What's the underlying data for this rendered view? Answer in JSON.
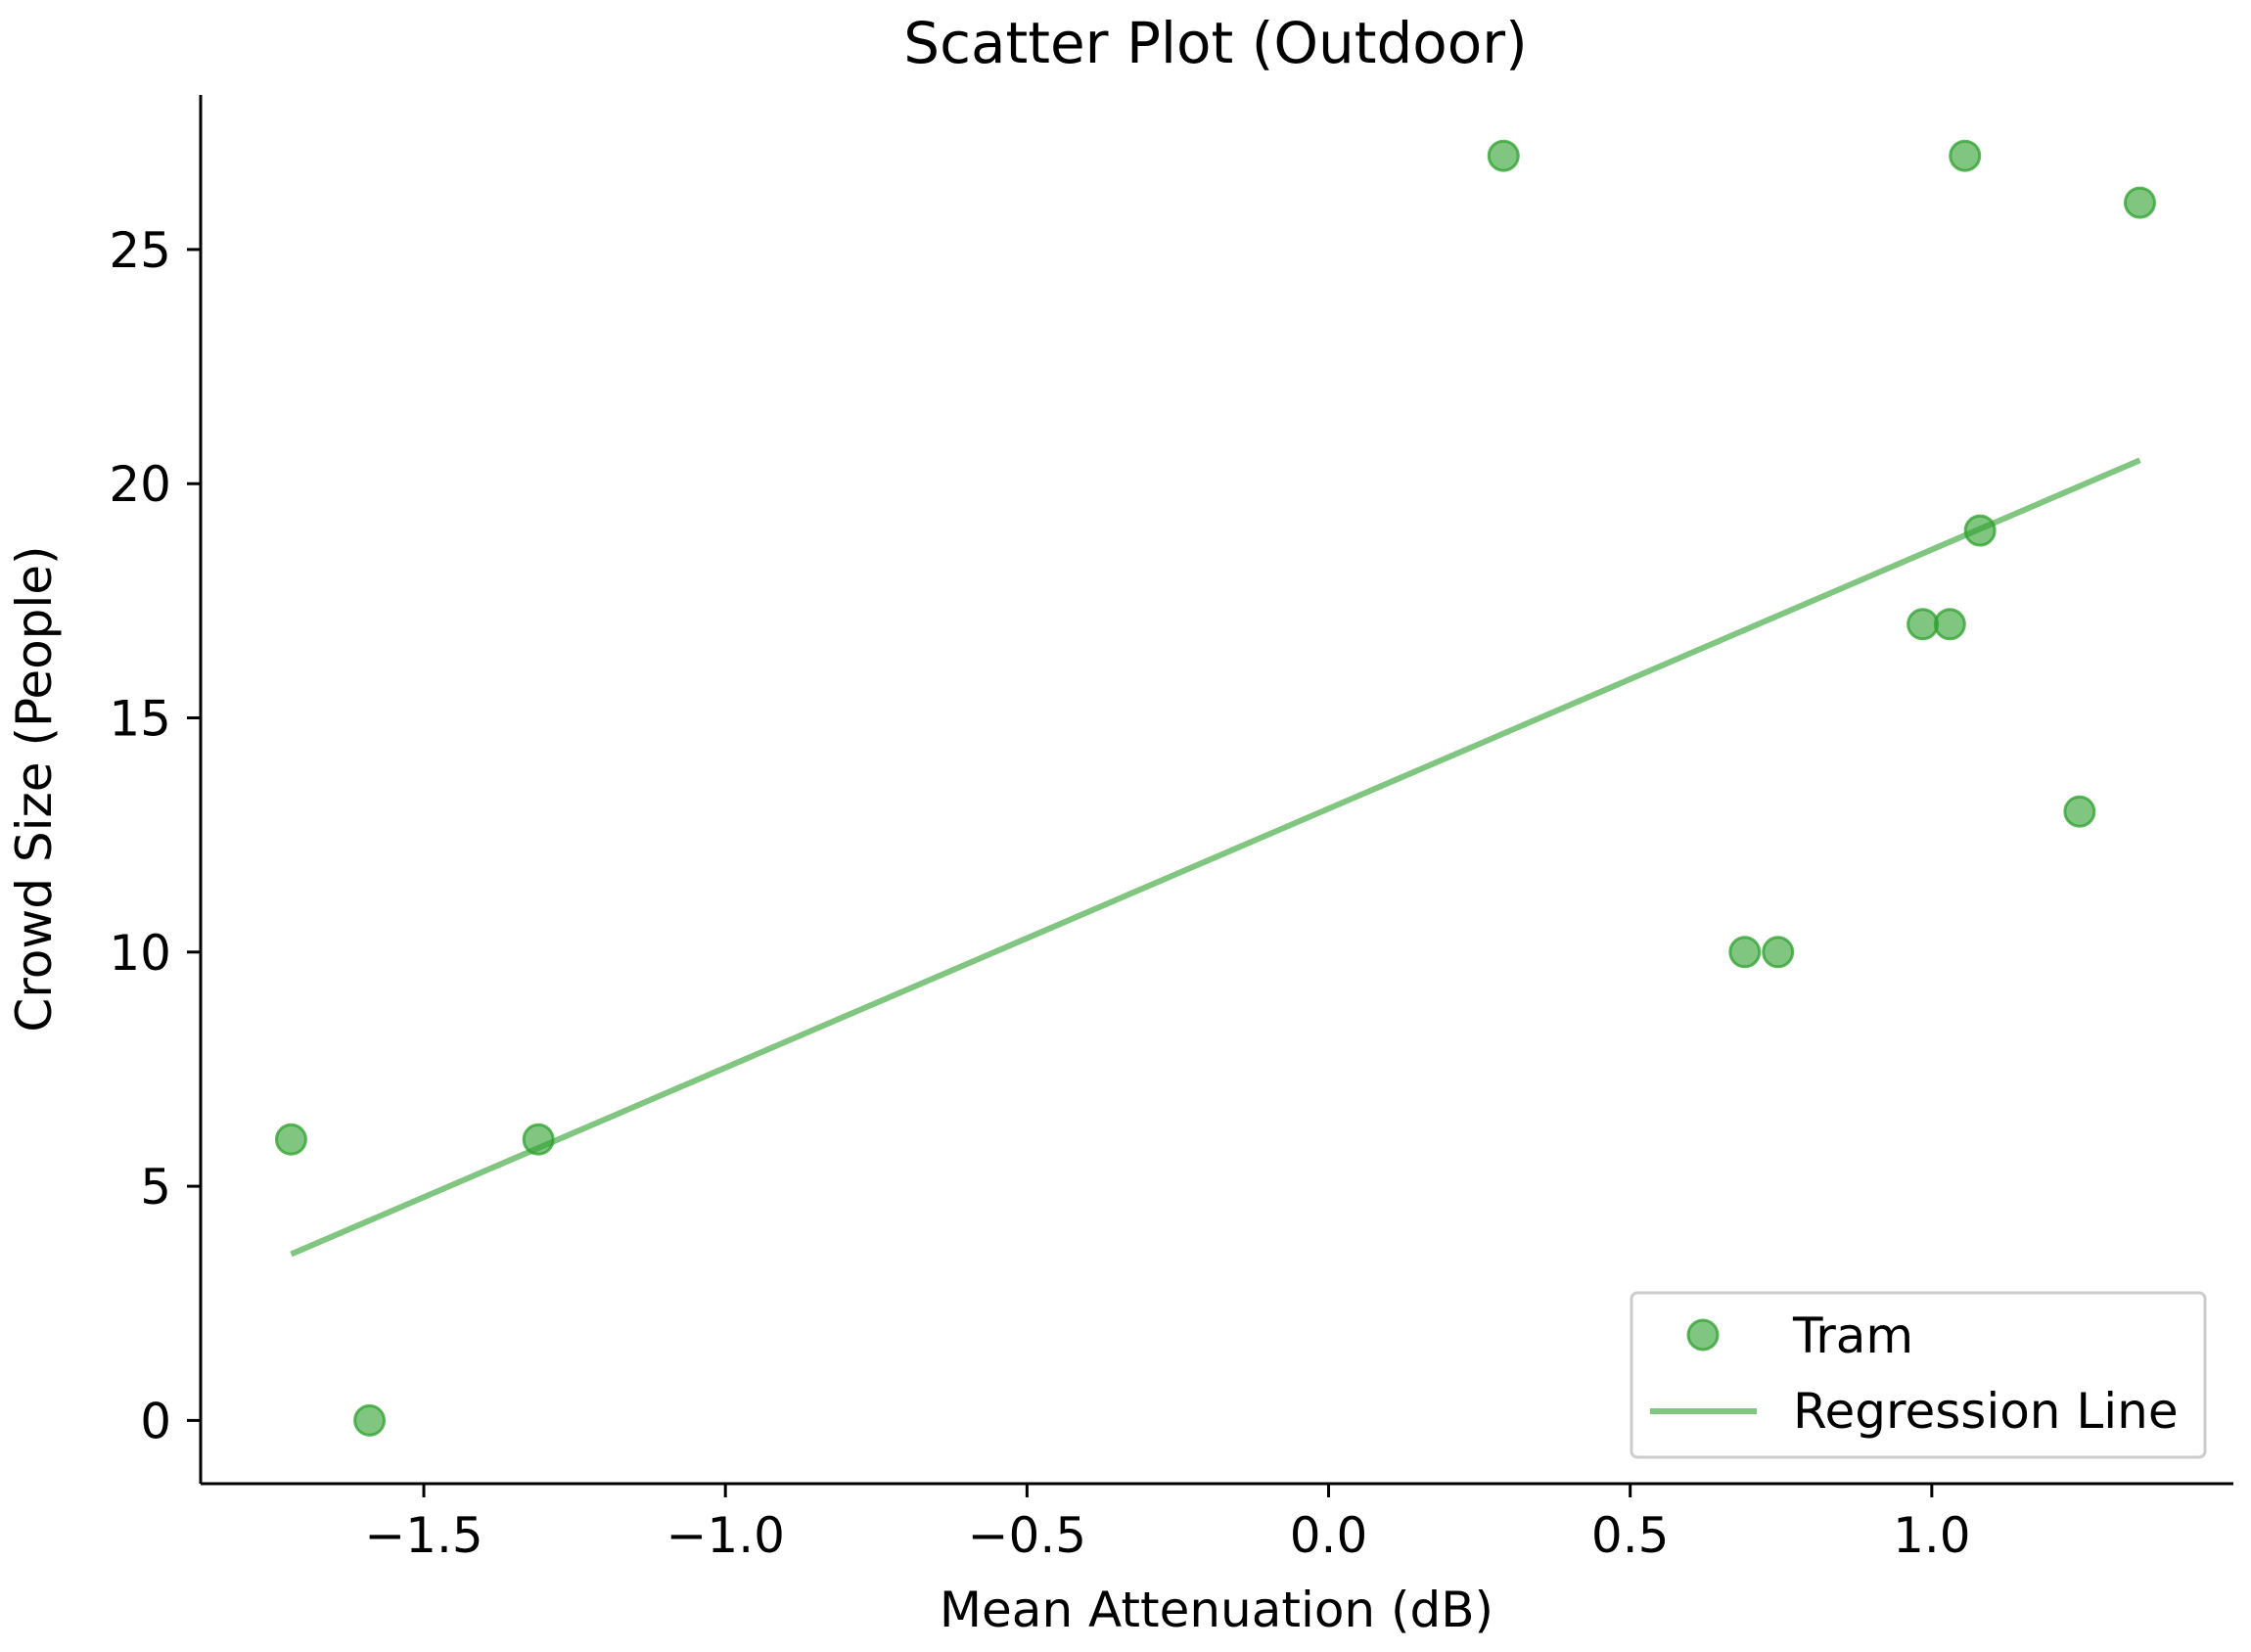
{
  "chart_data": {
    "type": "scatter",
    "title": "Scatter Plot (Outdoor)",
    "xlabel": "Mean Attenuation (dB)",
    "ylabel": "Crowd Size (People)",
    "xlim": [
      -1.87,
      1.5
    ],
    "ylim": [
      -1.35,
      28.3
    ],
    "x_ticks": [
      -1.5,
      -1.0,
      -0.5,
      0.0,
      0.5,
      1.0
    ],
    "x_tick_labels": [
      "−1.5",
      "−1.0",
      "−0.5",
      "0.0",
      "0.5",
      "1.0"
    ],
    "y_ticks": [
      0,
      5,
      10,
      15,
      20,
      25
    ],
    "y_tick_labels": [
      "0",
      "5",
      "10",
      "15",
      "20",
      "25"
    ],
    "grid": false,
    "legend_position": "bottom-right",
    "series": [
      {
        "name": "Tram",
        "kind": "scatter",
        "color": "#2ca02c",
        "points": [
          {
            "x": -1.72,
            "y": 6
          },
          {
            "x": -1.59,
            "y": 0
          },
          {
            "x": -1.31,
            "y": 6
          },
          {
            "x": 0.29,
            "y": 27
          },
          {
            "x": 0.69,
            "y": 10
          },
          {
            "x": 0.745,
            "y": 10
          },
          {
            "x": 0.985,
            "y": 17
          },
          {
            "x": 1.03,
            "y": 17
          },
          {
            "x": 1.055,
            "y": 27
          },
          {
            "x": 1.08,
            "y": 19
          },
          {
            "x": 1.245,
            "y": 13
          },
          {
            "x": 1.345,
            "y": 26
          }
        ]
      },
      {
        "name": "Regression Line",
        "kind": "line",
        "color": "#2ca02c",
        "points": [
          {
            "x": -1.72,
            "y": 3.55
          },
          {
            "x": 1.345,
            "y": 20.5
          }
        ]
      }
    ]
  }
}
